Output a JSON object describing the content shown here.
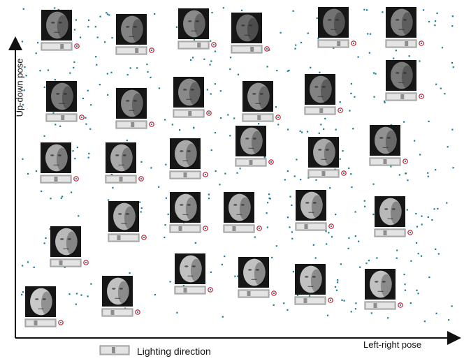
{
  "axes": {
    "y_label": "Up-down pose",
    "x_label": "Left-right pose"
  },
  "legend": {
    "label": "Lighting direction"
  },
  "colors": {
    "point": "#1a7f96",
    "axis": "#111111",
    "marker_ring": "#c0182a",
    "slider_bg": "#c8c8c8",
    "slider_handle": "#8e8e8e",
    "face_dark": "#3a3a3a",
    "face_light": "#d9d9d9"
  },
  "faces": [
    {
      "id": "face-r1-c1",
      "tone": 0.45,
      "slider": 0.72
    },
    {
      "id": "face-r1-c2",
      "tone": 0.45,
      "slider": 0.72
    },
    {
      "id": "face-r1-c3",
      "tone": 0.5,
      "slider": 0.72
    },
    {
      "id": "face-r1-c4",
      "tone": 0.3,
      "slider": 0.72
    },
    {
      "id": "face-r1-c5",
      "tone": 0.35,
      "slider": 0.72
    },
    {
      "id": "face-r1-c6",
      "tone": 0.45,
      "slider": 0.72
    },
    {
      "id": "face-r2-c1",
      "tone": 0.4,
      "slider": 0.55
    },
    {
      "id": "face-r2-c2",
      "tone": 0.5,
      "slider": 0.55
    },
    {
      "id": "face-r2-c3",
      "tone": 0.5,
      "slider": 0.55
    },
    {
      "id": "face-r2-c4",
      "tone": 0.55,
      "slider": 0.55
    },
    {
      "id": "face-r2-c5",
      "tone": 0.45,
      "slider": 0.55
    },
    {
      "id": "face-r2-c6",
      "tone": 0.4,
      "slider": 0.55
    },
    {
      "id": "face-r3-c1",
      "tone": 0.7,
      "slider": 0.5
    },
    {
      "id": "face-r3-c2",
      "tone": 0.7,
      "slider": 0.5
    },
    {
      "id": "face-r3-c3",
      "tone": 0.7,
      "slider": 0.5
    },
    {
      "id": "face-r3-c4",
      "tone": 0.65,
      "slider": 0.5
    },
    {
      "id": "face-r3-c5",
      "tone": 0.7,
      "slider": 0.5
    },
    {
      "id": "face-r3-c6",
      "tone": 0.55,
      "slider": 0.5
    },
    {
      "id": "face-r4-c1",
      "tone": 0.75,
      "slider": 0.3
    },
    {
      "id": "face-r4-c2",
      "tone": 0.8,
      "slider": 0.3
    },
    {
      "id": "face-r4-c3",
      "tone": 0.75,
      "slider": 0.3
    },
    {
      "id": "face-r4-c4",
      "tone": 0.8,
      "slider": 0.3
    },
    {
      "id": "face-r4-c5",
      "tone": 0.8,
      "slider": 0.3
    },
    {
      "id": "face-r5-c1",
      "tone": 0.8,
      "slider": 0.3
    },
    {
      "id": "face-r5-c2",
      "tone": 0.85,
      "slider": 0.3
    },
    {
      "id": "face-r5-c3",
      "tone": 0.85,
      "slider": 0.3
    },
    {
      "id": "face-r5-c4",
      "tone": 0.85,
      "slider": 0.3
    },
    {
      "id": "face-r5-c5",
      "tone": 0.85,
      "slider": 0.3
    },
    {
      "id": "face-r5-c6",
      "tone": 0.85,
      "slider": 0.3
    },
    {
      "id": "face-r6-c1",
      "tone": 0.9,
      "slider": 0.3
    }
  ]
}
